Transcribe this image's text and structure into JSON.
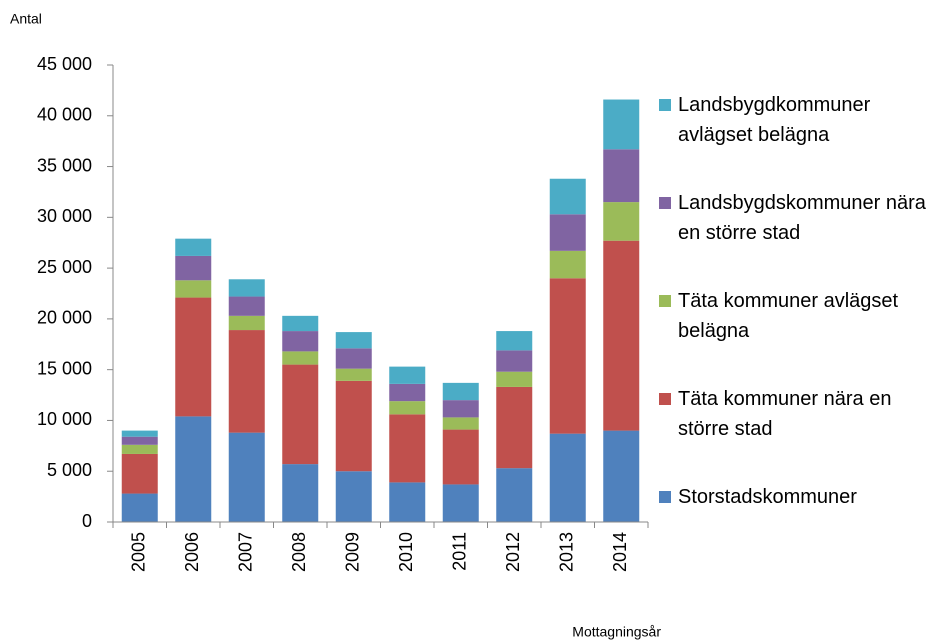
{
  "chart_data": {
    "type": "stacked_bar",
    "y_label": "Antal",
    "x_label": "Mottagningsår",
    "categories": [
      "2005",
      "2006",
      "2007",
      "2008",
      "2009",
      "2010",
      "2011",
      "2012",
      "2013",
      "2014"
    ],
    "series": [
      {
        "name": "Storstadskommuner",
        "color": "#4f81bd",
        "values": [
          2800,
          10400,
          8800,
          5700,
          5000,
          3900,
          3700,
          5300,
          8700,
          9000
        ]
      },
      {
        "name": "Täta kommuner nära en större stad",
        "color": "#c0504d",
        "values": [
          3900,
          11700,
          10100,
          9800,
          8900,
          6700,
          5400,
          8000,
          15300,
          18700
        ]
      },
      {
        "name": "Täta kommuner avlägset belägna",
        "color": "#9bbb59",
        "values": [
          900,
          1700,
          1400,
          1300,
          1200,
          1300,
          1200,
          1500,
          2700,
          3800
        ]
      },
      {
        "name": "Landsbygdskommuner nära en större stad",
        "color": "#8064a2",
        "values": [
          800,
          2400,
          1900,
          2000,
          2000,
          1700,
          1700,
          2100,
          3600,
          5200
        ]
      },
      {
        "name": "Landsbygdkommuner avlägset belägna",
        "color": "#4bacc6",
        "values": [
          600,
          1700,
          1700,
          1500,
          1600,
          1700,
          1700,
          1900,
          3500,
          4900
        ]
      }
    ],
    "ylim": [
      0,
      45000
    ],
    "yticks": [
      0,
      {
        "value": 5000,
        "label": "5 000"
      },
      {
        "value": 10000,
        "label": "10 000"
      },
      {
        "value": 15000,
        "label": "15 000"
      },
      {
        "value": 20000,
        "label": "20 000"
      },
      {
        "value": 25000,
        "label": "25 000"
      },
      {
        "value": 30000,
        "label": "30 000"
      },
      {
        "value": 35000,
        "label": "35 000"
      },
      {
        "value": 40000,
        "label": "40 000"
      },
      {
        "value": 45000,
        "label": "45 000"
      }
    ],
    "grid": false,
    "legend": "right"
  }
}
